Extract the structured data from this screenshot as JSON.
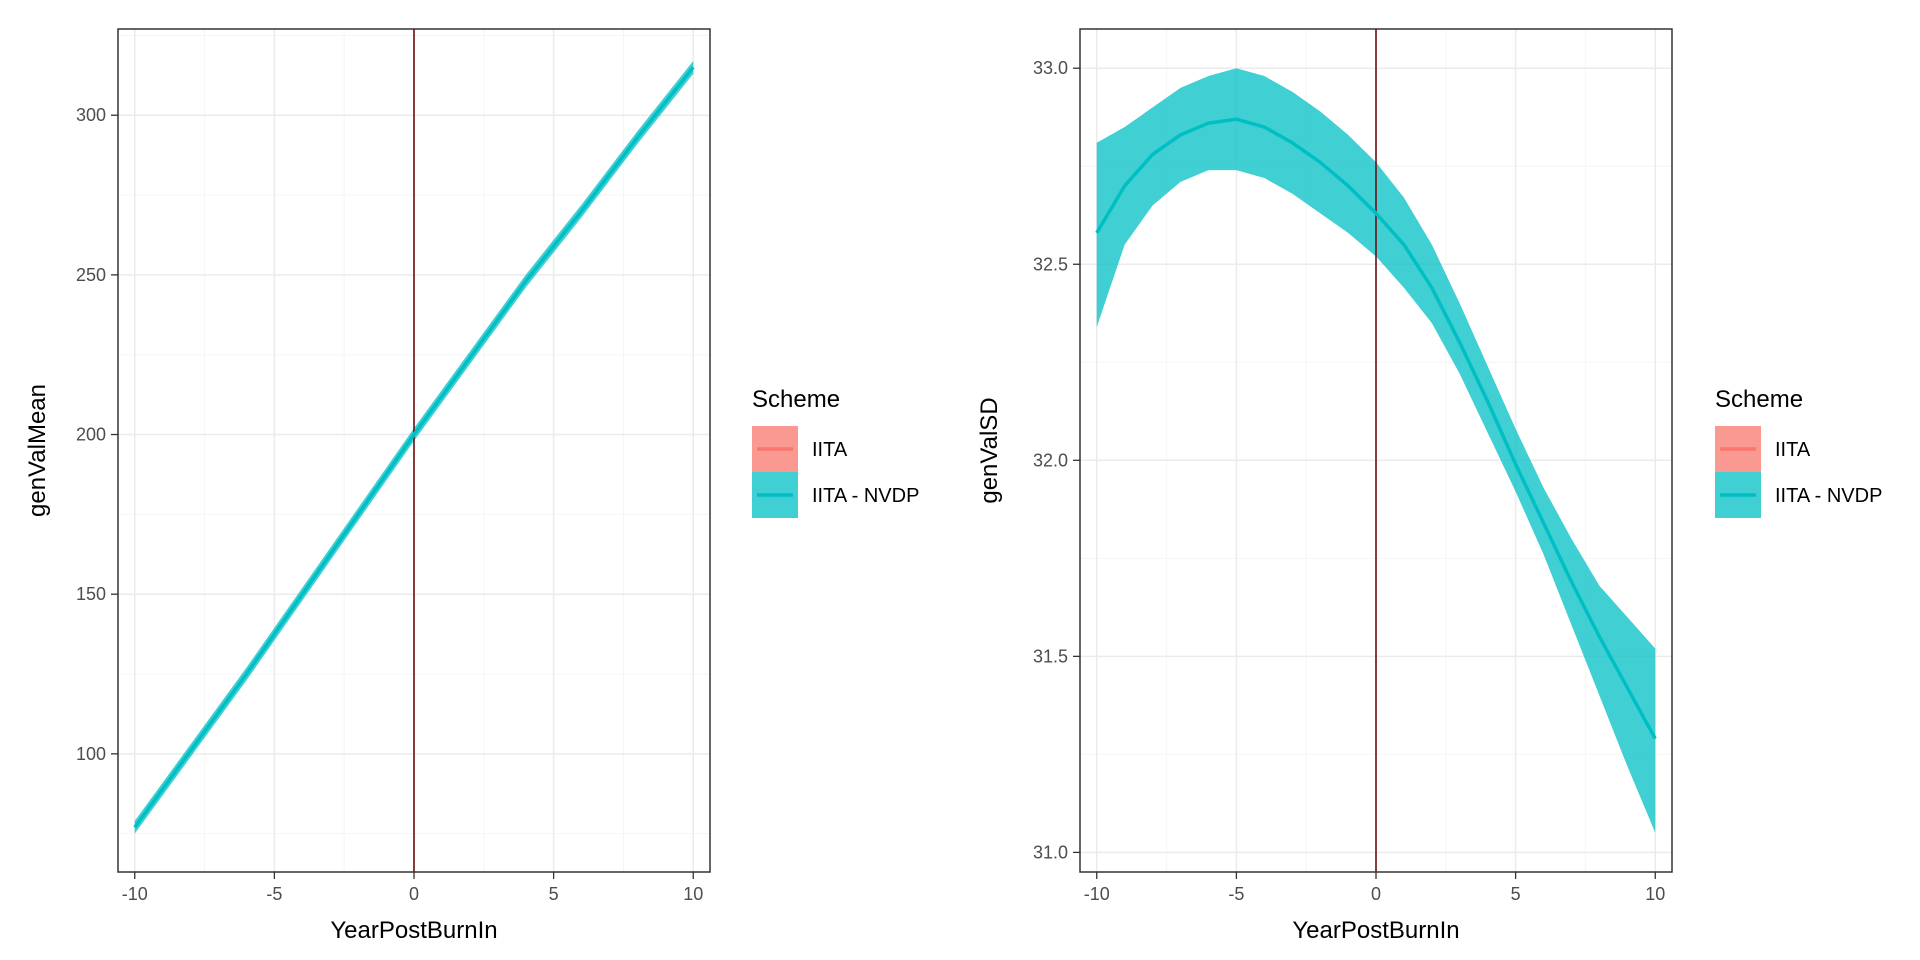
{
  "colors": {
    "IITA": "#F8766D",
    "IITA - NVDP": "#00BFC4",
    "vline": "#6b0f0f",
    "grid_major": "#ebebeb",
    "grid_minor": "#f5f5f5",
    "panel_border": "#333333"
  },
  "chart_data": [
    {
      "type": "line",
      "xlabel": "YearPostBurnIn",
      "ylabel": "genValMean",
      "xlim": [
        -10.6,
        10.6
      ],
      "ylim": [
        63,
        327
      ],
      "x_ticks": [
        -10,
        -5,
        0,
        5,
        10
      ],
      "x_tick_labels": [
        "-10",
        "-5",
        "0",
        "5",
        "10"
      ],
      "y_ticks": [
        100,
        150,
        200,
        250,
        300
      ],
      "y_tick_labels": [
        "100",
        "150",
        "200",
        "250",
        "300"
      ],
      "grid": true,
      "vline_x": 0,
      "legend": {
        "title": "Scheme",
        "position": "right",
        "entries": [
          "IITA",
          "IITA - NVDP"
        ]
      },
      "series": [
        {
          "name": "IITA - NVDP",
          "x": [
            -10,
            -8,
            -6,
            -4,
            -2,
            0,
            2,
            4,
            6,
            8,
            10
          ],
          "y": [
            77,
            101,
            125,
            150,
            175,
            200,
            224,
            248,
            270,
            293,
            315
          ],
          "lower": [
            75,
            99,
            123,
            148,
            173,
            198,
            222,
            246,
            268,
            291,
            313
          ],
          "upper": [
            79,
            103,
            127,
            152,
            177,
            202,
            226,
            250,
            272,
            295,
            317
          ]
        }
      ]
    },
    {
      "type": "line",
      "xlabel": "YearPostBurnIn",
      "ylabel": "genValSD",
      "xlim": [
        -10.6,
        10.6
      ],
      "ylim": [
        30.95,
        33.1
      ],
      "x_ticks": [
        -10,
        -5,
        0,
        5,
        10
      ],
      "x_tick_labels": [
        "-10",
        "-5",
        "0",
        "5",
        "10"
      ],
      "y_ticks": [
        31.0,
        31.5,
        32.0,
        32.5,
        33.0
      ],
      "y_tick_labels": [
        "31.0",
        "31.5",
        "32.0",
        "32.5",
        "33.0"
      ],
      "grid": true,
      "vline_x": 0,
      "legend": {
        "title": "Scheme",
        "position": "right",
        "entries": [
          "IITA",
          "IITA - NVDP"
        ]
      },
      "series": [
        {
          "name": "IITA - NVDP",
          "x": [
            -10,
            -9,
            -8,
            -7,
            -6,
            -5,
            -4,
            -3,
            -2,
            -1,
            0,
            1,
            2,
            3,
            4,
            5,
            6,
            7,
            8,
            9,
            10
          ],
          "y": [
            32.58,
            32.7,
            32.78,
            32.83,
            32.86,
            32.87,
            32.85,
            32.81,
            32.76,
            32.7,
            32.63,
            32.55,
            32.44,
            32.3,
            32.15,
            31.99,
            31.84,
            31.69,
            31.55,
            31.42,
            31.29
          ],
          "lower": [
            32.34,
            32.55,
            32.65,
            32.71,
            32.74,
            32.74,
            32.72,
            32.68,
            32.63,
            32.58,
            32.52,
            32.44,
            32.35,
            32.22,
            32.07,
            31.92,
            31.76,
            31.58,
            31.4,
            31.22,
            31.05
          ],
          "upper": [
            32.81,
            32.85,
            32.9,
            32.95,
            32.98,
            33.0,
            32.98,
            32.94,
            32.89,
            32.83,
            32.76,
            32.67,
            32.55,
            32.4,
            32.24,
            32.08,
            31.93,
            31.8,
            31.68,
            31.6,
            31.52
          ]
        }
      ]
    }
  ]
}
